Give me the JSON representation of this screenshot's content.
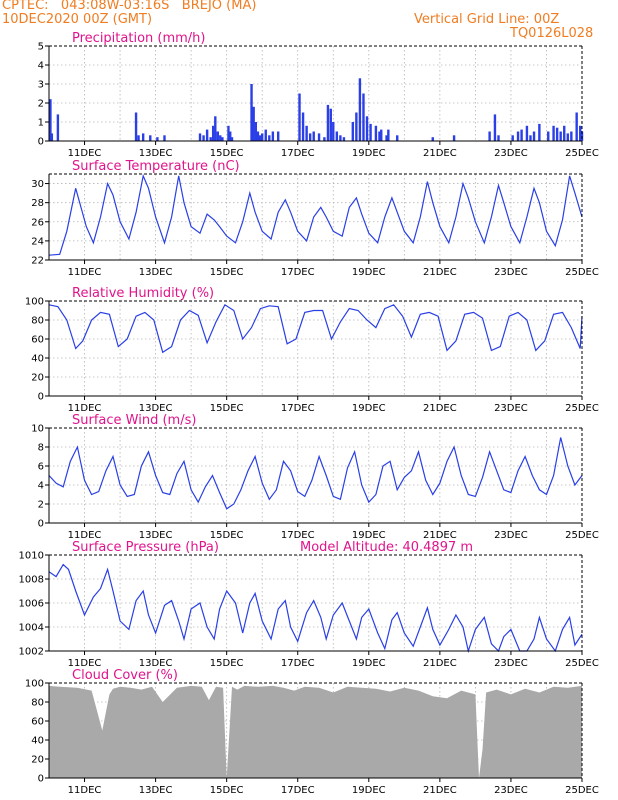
{
  "header": {
    "line1_left": "CPTEC:   043:08W-03:16S   BREJO (MA)",
    "line2_left": "10DEC2020 00Z (GMT)",
    "line1_right": "Vertical Grid Line: 00Z",
    "line2_right": "TQ0126L028"
  },
  "colors": {
    "header": "#f07d22",
    "title": "#e0148c",
    "series": "#2a3fe6",
    "cloud": "#a9a9a9",
    "grid": "#b5b5b5"
  },
  "chart_data": [
    {
      "type": "bar",
      "title": "Precipitation (mm/h)",
      "ylim": [
        0,
        5
      ],
      "yticks": [
        0,
        1,
        2,
        3,
        4,
        5
      ],
      "xlim": [
        0,
        15
      ],
      "xticks": [
        {
          "x": 1,
          "label": "11DEC"
        },
        {
          "x": 3,
          "label": "13DEC"
        },
        {
          "x": 5,
          "label": "15DEC"
        },
        {
          "x": 7,
          "label": "17DEC"
        },
        {
          "x": 9,
          "label": "19DEC"
        },
        {
          "x": 11,
          "label": "21DEC"
        },
        {
          "x": 13,
          "label": "23DEC"
        },
        {
          "x": 15,
          "label": "25DEC"
        }
      ],
      "x": [
        0.04,
        0.08,
        0.25,
        2.45,
        2.52,
        2.65,
        2.85,
        3.05,
        3.25,
        4.25,
        4.35,
        4.45,
        4.55,
        4.62,
        4.68,
        4.75,
        4.82,
        4.88,
        5.05,
        5.1,
        5.15,
        5.7,
        5.76,
        5.82,
        5.88,
        5.94,
        6.0,
        6.1,
        6.2,
        6.3,
        6.45,
        7.05,
        7.15,
        7.25,
        7.35,
        7.45,
        7.6,
        7.75,
        7.85,
        7.93,
        8.0,
        8.1,
        8.2,
        8.3,
        8.55,
        8.65,
        8.75,
        8.85,
        8.95,
        9.05,
        9.2,
        9.3,
        9.35,
        9.5,
        9.55,
        9.8,
        10.8,
        11.4,
        12.4,
        12.55,
        12.65,
        13.05,
        13.2,
        13.3,
        13.45,
        13.55,
        13.65,
        13.8,
        14.05,
        14.2,
        14.3,
        14.4,
        14.5,
        14.6,
        14.7,
        14.85,
        14.95,
        15.0
      ],
      "values": [
        2.2,
        0.4,
        1.4,
        1.5,
        0.3,
        0.4,
        0.3,
        0.2,
        0.3,
        0.4,
        0.3,
        0.6,
        0.2,
        0.8,
        1.3,
        0.5,
        0.3,
        0.2,
        0.8,
        0.5,
        0.2,
        3.0,
        1.8,
        1.0,
        0.5,
        0.3,
        0.4,
        0.6,
        0.3,
        0.5,
        0.5,
        2.5,
        1.5,
        0.8,
        0.4,
        0.5,
        0.4,
        0.2,
        1.9,
        1.7,
        1.0,
        0.5,
        0.3,
        0.2,
        1.0,
        1.5,
        3.3,
        2.5,
        1.3,
        0.9,
        0.8,
        0.5,
        0.6,
        0.3,
        0.6,
        0.3,
        0.2,
        0.3,
        0.5,
        1.4,
        0.3,
        0.3,
        0.5,
        0.6,
        0.8,
        0.3,
        0.5,
        0.9,
        0.5,
        0.8,
        0.7,
        0.5,
        0.8,
        0.4,
        0.5,
        1.5,
        0.8,
        0.5
      ]
    },
    {
      "type": "line",
      "title": "Surface Temperature (nC)",
      "ylim": [
        22,
        31
      ],
      "yticks": [
        22,
        24,
        26,
        28,
        30
      ],
      "xlim": [
        0,
        15
      ],
      "xticks": [
        {
          "x": 1,
          "label": "11DEC"
        },
        {
          "x": 3,
          "label": "13DEC"
        },
        {
          "x": 5,
          "label": "15DEC"
        },
        {
          "x": 7,
          "label": "17DEC"
        },
        {
          "x": 9,
          "label": "19DEC"
        },
        {
          "x": 11,
          "label": "21DEC"
        },
        {
          "x": 13,
          "label": "23DEC"
        },
        {
          "x": 15,
          "label": "25DEC"
        }
      ],
      "x": [
        0,
        0.3,
        0.5,
        0.75,
        0.9,
        1.05,
        1.25,
        1.45,
        1.65,
        1.8,
        2.0,
        2.25,
        2.45,
        2.65,
        2.8,
        3.0,
        3.25,
        3.45,
        3.65,
        3.8,
        4.0,
        4.25,
        4.45,
        4.65,
        4.8,
        5.0,
        5.25,
        5.45,
        5.65,
        5.8,
        6.0,
        6.25,
        6.45,
        6.65,
        6.8,
        7.0,
        7.25,
        7.45,
        7.65,
        7.8,
        8.0,
        8.25,
        8.45,
        8.65,
        8.8,
        9.0,
        9.25,
        9.45,
        9.65,
        9.8,
        10.0,
        10.25,
        10.45,
        10.65,
        10.8,
        11.0,
        11.25,
        11.45,
        11.65,
        11.8,
        12.0,
        12.25,
        12.45,
        12.65,
        12.8,
        13.0,
        13.25,
        13.45,
        13.65,
        13.8,
        14.0,
        14.25,
        14.45,
        14.65,
        14.8,
        15.0
      ],
      "values": [
        22.5,
        22.6,
        25.0,
        29.5,
        27.5,
        25.5,
        23.8,
        26.5,
        30.0,
        28.8,
        26.0,
        24.2,
        27.0,
        30.8,
        29.5,
        26.5,
        23.8,
        26.5,
        30.8,
        28.0,
        25.5,
        24.8,
        26.8,
        26.2,
        25.5,
        24.5,
        23.8,
        26.0,
        29.0,
        27.0,
        25.0,
        24.2,
        27.0,
        28.3,
        27.0,
        25.0,
        24.0,
        26.5,
        27.5,
        26.5,
        25.0,
        24.5,
        27.5,
        28.5,
        26.8,
        24.8,
        23.8,
        26.5,
        28.5,
        27.0,
        25.0,
        23.8,
        26.5,
        30.2,
        28.0,
        25.5,
        23.8,
        26.5,
        30.0,
        28.5,
        26.0,
        23.8,
        26.5,
        29.8,
        28.0,
        25.5,
        23.8,
        26.5,
        29.5,
        28.0,
        25.0,
        23.5,
        26.2,
        30.8,
        29.0,
        26.5
      ]
    },
    {
      "type": "line",
      "title": "Relative Humidity (%)",
      "ylim": [
        0,
        100
      ],
      "yticks": [
        0,
        20,
        40,
        60,
        80,
        100
      ],
      "xlim": [
        0,
        15
      ],
      "xticks": [
        {
          "x": 1,
          "label": "11DEC"
        },
        {
          "x": 3,
          "label": "13DEC"
        },
        {
          "x": 5,
          "label": "15DEC"
        },
        {
          "x": 7,
          "label": "17DEC"
        },
        {
          "x": 9,
          "label": "19DEC"
        },
        {
          "x": 11,
          "label": "21DEC"
        },
        {
          "x": 13,
          "label": "23DEC"
        },
        {
          "x": 15,
          "label": "25DEC"
        }
      ],
      "x": [
        0,
        0.25,
        0.5,
        0.75,
        0.95,
        1.2,
        1.45,
        1.7,
        1.95,
        2.2,
        2.45,
        2.7,
        2.95,
        3.2,
        3.45,
        3.7,
        3.95,
        4.2,
        4.45,
        4.7,
        4.95,
        5.2,
        5.45,
        5.7,
        5.95,
        6.2,
        6.45,
        6.7,
        6.95,
        7.2,
        7.45,
        7.7,
        7.95,
        8.2,
        8.45,
        8.7,
        8.95,
        9.2,
        9.45,
        9.7,
        9.95,
        10.2,
        10.45,
        10.7,
        10.95,
        11.2,
        11.45,
        11.7,
        11.95,
        12.2,
        12.45,
        12.7,
        12.95,
        13.2,
        13.45,
        13.7,
        13.95,
        14.2,
        14.45,
        14.7,
        14.95,
        15.0
      ],
      "values": [
        96,
        94,
        80,
        50,
        58,
        80,
        88,
        86,
        52,
        60,
        84,
        88,
        80,
        46,
        52,
        80,
        90,
        85,
        56,
        78,
        96,
        90,
        60,
        72,
        92,
        95,
        94,
        55,
        60,
        88,
        90,
        90,
        60,
        78,
        92,
        90,
        80,
        72,
        92,
        96,
        84,
        62,
        86,
        88,
        84,
        48,
        58,
        86,
        88,
        82,
        48,
        52,
        84,
        88,
        80,
        48,
        58,
        86,
        88,
        72,
        50,
        84
      ]
    },
    {
      "type": "line",
      "title": "Surface Wind (m/s)",
      "ylim": [
        0,
        10
      ],
      "yticks": [
        0,
        2,
        4,
        6,
        8,
        10
      ],
      "xlim": [
        0,
        15
      ],
      "xticks": [
        {
          "x": 1,
          "label": "11DEC"
        },
        {
          "x": 3,
          "label": "13DEC"
        },
        {
          "x": 5,
          "label": "15DEC"
        },
        {
          "x": 7,
          "label": "17DEC"
        },
        {
          "x": 9,
          "label": "19DEC"
        },
        {
          "x": 11,
          "label": "21DEC"
        },
        {
          "x": 13,
          "label": "23DEC"
        },
        {
          "x": 15,
          "label": "25DEC"
        }
      ],
      "x": [
        0,
        0.2,
        0.4,
        0.6,
        0.8,
        1.0,
        1.2,
        1.4,
        1.6,
        1.8,
        2.0,
        2.2,
        2.4,
        2.6,
        2.8,
        3.0,
        3.2,
        3.4,
        3.6,
        3.8,
        4.0,
        4.2,
        4.4,
        4.6,
        4.8,
        5.0,
        5.2,
        5.4,
        5.6,
        5.8,
        6.0,
        6.2,
        6.4,
        6.6,
        6.8,
        7.0,
        7.2,
        7.4,
        7.6,
        7.8,
        8.0,
        8.2,
        8.4,
        8.6,
        8.8,
        9.0,
        9.2,
        9.4,
        9.6,
        9.8,
        10.0,
        10.2,
        10.4,
        10.6,
        10.8,
        11.0,
        11.2,
        11.4,
        11.6,
        11.8,
        12.0,
        12.2,
        12.4,
        12.6,
        12.8,
        13.0,
        13.2,
        13.4,
        13.6,
        13.8,
        14.0,
        14.2,
        14.4,
        14.6,
        14.8,
        15.0
      ],
      "values": [
        5.0,
        4.2,
        3.8,
        6.5,
        8.0,
        4.5,
        3.0,
        3.3,
        5.5,
        7.0,
        4.0,
        2.8,
        3.0,
        6.0,
        7.5,
        5.0,
        3.2,
        3.0,
        5.2,
        6.5,
        3.5,
        2.2,
        3.8,
        5.0,
        3.2,
        1.5,
        2.0,
        3.5,
        5.5,
        7.0,
        4.2,
        2.5,
        3.5,
        6.5,
        5.5,
        3.3,
        2.8,
        4.5,
        7.0,
        5.0,
        2.8,
        2.5,
        5.8,
        7.5,
        4.0,
        2.2,
        3.0,
        6.0,
        6.5,
        3.5,
        4.8,
        5.5,
        7.5,
        4.5,
        3.0,
        4.2,
        6.5,
        8.0,
        5.0,
        3.0,
        2.8,
        4.8,
        7.5,
        5.5,
        3.5,
        3.2,
        5.5,
        7.0,
        5.0,
        3.5,
        3.0,
        5.0,
        9.0,
        6.0,
        4.0,
        5.0
      ]
    },
    {
      "type": "line",
      "title": "Surface Pressure (hPa)",
      "annotation": "Model Altitude: 40.4897 m",
      "ylim": [
        1002,
        1010
      ],
      "yticks": [
        1002,
        1004,
        1006,
        1008,
        1010
      ],
      "xlim": [
        0,
        15
      ],
      "xticks": [
        {
          "x": 1,
          "label": "11DEC"
        },
        {
          "x": 3,
          "label": "13DEC"
        },
        {
          "x": 5,
          "label": "15DEC"
        },
        {
          "x": 7,
          "label": "17DEC"
        },
        {
          "x": 9,
          "label": "19DEC"
        },
        {
          "x": 11,
          "label": "21DEC"
        },
        {
          "x": 13,
          "label": "23DEC"
        },
        {
          "x": 15,
          "label": "25DEC"
        }
      ],
      "x": [
        0,
        0.2,
        0.4,
        0.55,
        0.75,
        1.0,
        1.25,
        1.45,
        1.65,
        1.8,
        2.0,
        2.25,
        2.45,
        2.65,
        2.8,
        3.0,
        3.25,
        3.45,
        3.65,
        3.8,
        4.0,
        4.25,
        4.45,
        4.65,
        4.8,
        5.0,
        5.25,
        5.45,
        5.65,
        5.8,
        6.0,
        6.25,
        6.45,
        6.65,
        6.8,
        7.0,
        7.25,
        7.45,
        7.65,
        7.8,
        8.0,
        8.25,
        8.45,
        8.65,
        8.8,
        9.0,
        9.25,
        9.45,
        9.65,
        9.8,
        10.0,
        10.25,
        10.45,
        10.65,
        10.8,
        11.0,
        11.25,
        11.45,
        11.65,
        11.8,
        12.0,
        12.25,
        12.45,
        12.65,
        12.8,
        13.0,
        13.25,
        13.45,
        13.65,
        13.8,
        14.0,
        14.25,
        14.45,
        14.65,
        14.8,
        15.0
      ],
      "values": [
        1008.6,
        1008.2,
        1009.2,
        1008.8,
        1007.0,
        1005.0,
        1006.5,
        1007.2,
        1008.8,
        1007.0,
        1004.5,
        1003.8,
        1006.2,
        1007.0,
        1005.0,
        1003.5,
        1005.8,
        1006.2,
        1004.5,
        1003.0,
        1005.5,
        1006.0,
        1004.0,
        1003.0,
        1005.5,
        1007.0,
        1006.0,
        1003.5,
        1006.0,
        1006.8,
        1004.5,
        1003.0,
        1005.5,
        1006.2,
        1004.0,
        1002.8,
        1005.2,
        1006.2,
        1004.8,
        1003.0,
        1005.0,
        1006.0,
        1004.5,
        1003.0,
        1004.8,
        1005.5,
        1003.5,
        1002.2,
        1004.6,
        1005.2,
        1003.5,
        1002.4,
        1004.0,
        1005.6,
        1003.8,
        1002.5,
        1003.8,
        1005.0,
        1004.0,
        1002.0,
        1003.8,
        1004.8,
        1002.6,
        1002.0,
        1003.2,
        1003.8,
        1002.0,
        1001.8,
        1003.0,
        1004.8,
        1003.0,
        1002.0,
        1003.8,
        1004.8,
        1002.5,
        1003.4
      ]
    },
    {
      "type": "area",
      "title": "Cloud Cover (%)",
      "ylim": [
        0,
        100
      ],
      "yticks": [
        0,
        20,
        40,
        60,
        80,
        100
      ],
      "xlim": [
        0,
        15
      ],
      "xticks": [
        {
          "x": 1,
          "label": "11DEC"
        },
        {
          "x": 3,
          "label": "13DEC"
        },
        {
          "x": 5,
          "label": "15DEC"
        },
        {
          "x": 7,
          "label": "17DEC"
        },
        {
          "x": 9,
          "label": "19DEC"
        },
        {
          "x": 11,
          "label": "21DEC"
        },
        {
          "x": 13,
          "label": "23DEC"
        },
        {
          "x": 15,
          "label": "25DEC"
        }
      ],
      "x": [
        0,
        0.3,
        0.8,
        1.2,
        1.5,
        1.7,
        1.8,
        2.0,
        2.3,
        2.6,
        2.9,
        3.2,
        3.6,
        4.0,
        4.3,
        4.5,
        4.7,
        4.9,
        5.0,
        5.15,
        5.3,
        5.5,
        5.9,
        6.3,
        6.6,
        6.9,
        7.2,
        7.6,
        8.0,
        8.4,
        8.8,
        9.2,
        9.6,
        10.0,
        10.4,
        10.8,
        11.2,
        11.6,
        12.0,
        12.1,
        12.2,
        12.3,
        12.6,
        13.0,
        13.4,
        13.8,
        14.2,
        14.6,
        15.0
      ],
      "values": [
        97,
        96,
        95,
        92,
        50,
        88,
        94,
        96,
        95,
        93,
        96,
        80,
        95,
        97,
        96,
        82,
        96,
        95,
        0,
        96,
        93,
        97,
        96,
        97,
        95,
        92,
        96,
        95,
        90,
        96,
        95,
        94,
        91,
        95,
        92,
        86,
        84,
        92,
        88,
        0,
        30,
        90,
        93,
        88,
        94,
        90,
        96,
        95,
        97
      ]
    }
  ]
}
